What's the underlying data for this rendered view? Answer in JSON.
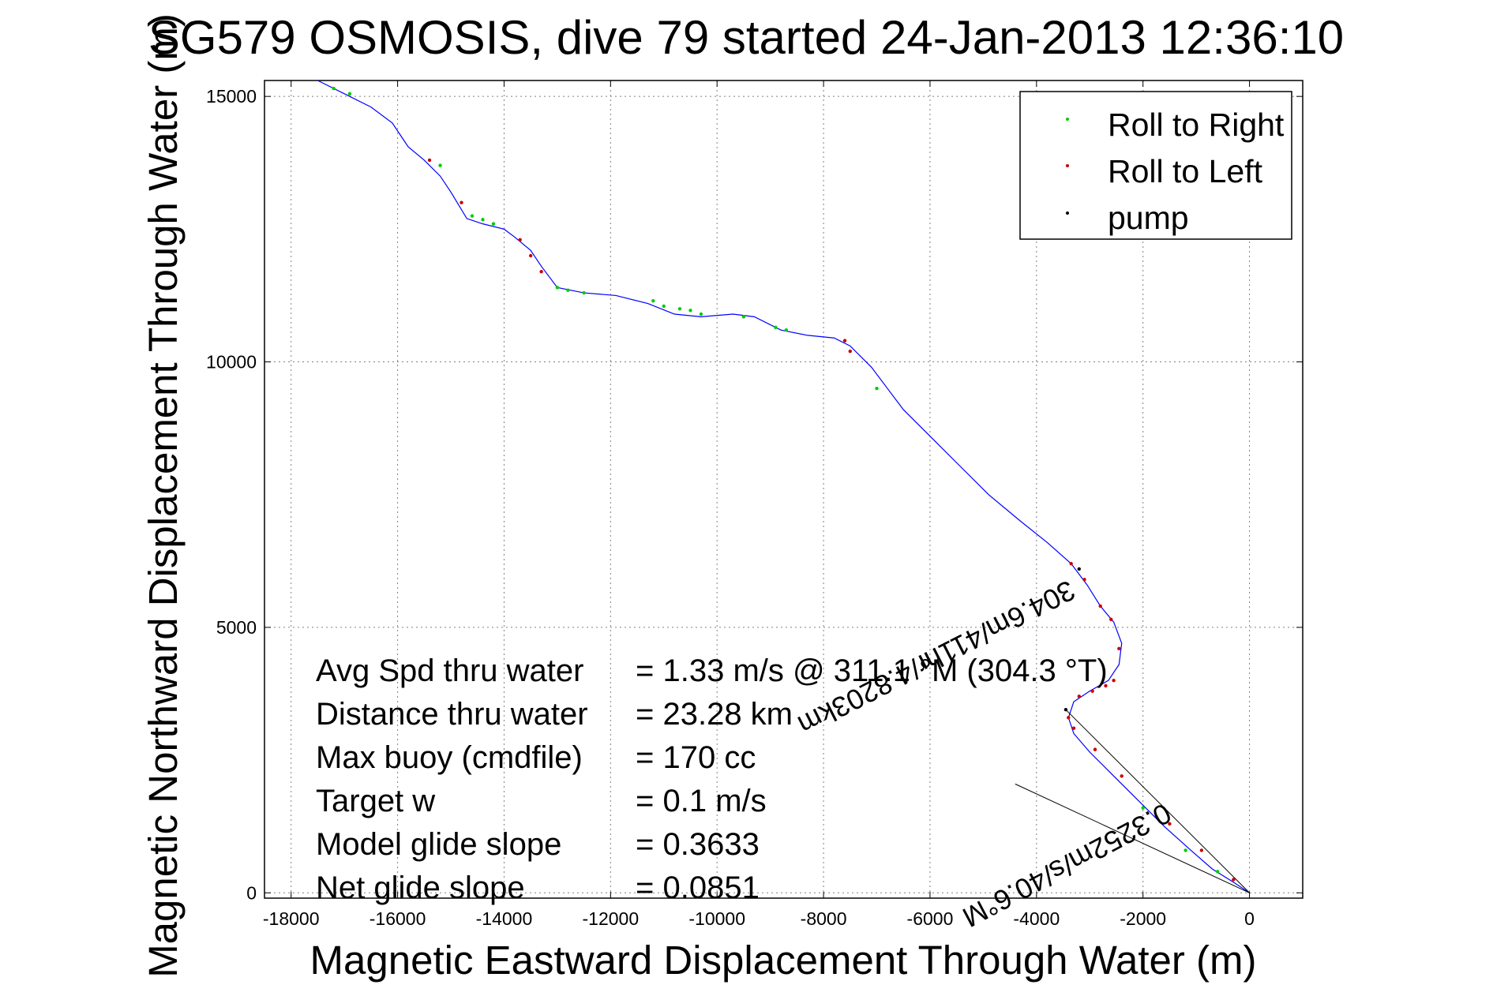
{
  "chart_data": {
    "type": "scatter",
    "title": "SG579 OSMOSIS, dive 79 started 24-Jan-2013 12:36:10",
    "xlabel": "Magnetic Eastward Displacement Through Water (m)",
    "ylabel": "Magnetic Northward Displacement Through Water (m)",
    "xlim": [
      -18500,
      1000
    ],
    "ylim": [
      -100,
      15300
    ],
    "xticks": [
      -18000,
      -16000,
      -14000,
      -12000,
      -10000,
      -8000,
      -6000,
      -4000,
      -2000,
      0
    ],
    "yticks": [
      0,
      5000,
      10000,
      15000
    ],
    "grid": true,
    "legend_position": "top-right",
    "colors": {
      "track": "#0000ff",
      "roll_right": "#00cc00",
      "roll_left": "#cc0000",
      "pump": "#000000",
      "line": "#000000"
    },
    "track": {
      "x": [
        0,
        -300,
        -700,
        -1100,
        -1600,
        -2100,
        -2600,
        -3000,
        -3300,
        -3400,
        -3300,
        -3000,
        -2650,
        -2450,
        -2400,
        -2550,
        -2800,
        -3050,
        -3350,
        -3800,
        -4300,
        -4900,
        -5500,
        -6000,
        -6500,
        -6800,
        -7100,
        -7500,
        -7800,
        -8300,
        -8800,
        -9300,
        -9700,
        -10300,
        -10800,
        -11300,
        -11900,
        -12500,
        -13000,
        -13300,
        -13500,
        -13800,
        -14000,
        -14400,
        -14700,
        -15000,
        -15200,
        -15500,
        -15800,
        -16100,
        -16500,
        -17000,
        -17500
      ],
      "y": [
        0,
        200,
        450,
        800,
        1250,
        1750,
        2250,
        2650,
        3000,
        3300,
        3600,
        3800,
        4000,
        4300,
        4700,
        5100,
        5400,
        5800,
        6200,
        6600,
        7000,
        7500,
        8100,
        8600,
        9100,
        9500,
        9900,
        10300,
        10450,
        10500,
        10600,
        10850,
        10900,
        10850,
        10900,
        11100,
        11250,
        11300,
        11400,
        11800,
        12100,
        12350,
        12500,
        12600,
        12700,
        13200,
        13500,
        13800,
        14050,
        14500,
        14800,
        15050,
        15300
      ]
    },
    "roll_right": {
      "x": [
        -17200,
        -16900,
        -15200,
        -14600,
        -14400,
        -14200,
        -13000,
        -12800,
        -12500,
        -11200,
        -11000,
        -10700,
        -10500,
        -10300,
        -9500,
        -8900,
        -8700,
        -7000,
        -2000,
        -1200,
        -600
      ],
      "y": [
        15150,
        15050,
        13700,
        12750,
        12680,
        12600,
        11400,
        11350,
        11300,
        11150,
        11050,
        11000,
        10970,
        10900,
        10850,
        10650,
        10600,
        9500,
        1600,
        800,
        400
      ]
    },
    "roll_left": {
      "x": [
        -15400,
        -14800,
        -13700,
        -13500,
        -13300,
        -7600,
        -7500,
        -3400,
        -3200,
        -2950,
        -2700,
        -2550,
        -2450,
        -2600,
        -2800,
        -3100,
        -3350,
        -3300,
        -2900,
        -2400,
        -1500,
        -900,
        -300
      ],
      "y": [
        13800,
        13000,
        12300,
        12000,
        11700,
        10400,
        10200,
        3300,
        3700,
        3800,
        3900,
        4000,
        4600,
        5150,
        5400,
        5900,
        6200,
        3100,
        2700,
        2200,
        1300,
        800,
        250
      ]
    },
    "pump": {
      "x": [
        -3450,
        -3200
      ],
      "y": [
        3450,
        6100
      ]
    },
    "lines": [
      {
        "x": [
          0,
          -3450
        ],
        "y": [
          0,
          3450
        ]
      },
      {
        "x": [
          0,
          -4400
        ],
        "y": [
          0,
          2050
        ]
      }
    ],
    "rotated_labels": [
      {
        "text": "304.6m/411hr/4.8203km",
        "anchor": [
          -3400,
          5900
        ],
        "angle": 153
      },
      {
        "text": "0.3252m/s/40.6°M",
        "anchor": [
          -1600,
          1700
        ],
        "angle": 152
      }
    ],
    "legend": [
      "Roll to Right",
      "Roll to Left",
      "pump"
    ],
    "stats": [
      {
        "label": "Avg Spd thru water",
        "value": "=  1.33 m/s @ 311.1 °M (304.3 °T)"
      },
      {
        "label": "Distance thru water",
        "value": "= 23.28 km"
      },
      {
        "label": "Max buoy (cmdfile)",
        "value": "= 170 cc"
      },
      {
        "label": "Target w",
        "value": "= 0.1 m/s"
      },
      {
        "label": "Model glide slope",
        "value": "= 0.3633"
      },
      {
        "label": "Net glide slope",
        "value": "= 0.0851"
      }
    ]
  }
}
